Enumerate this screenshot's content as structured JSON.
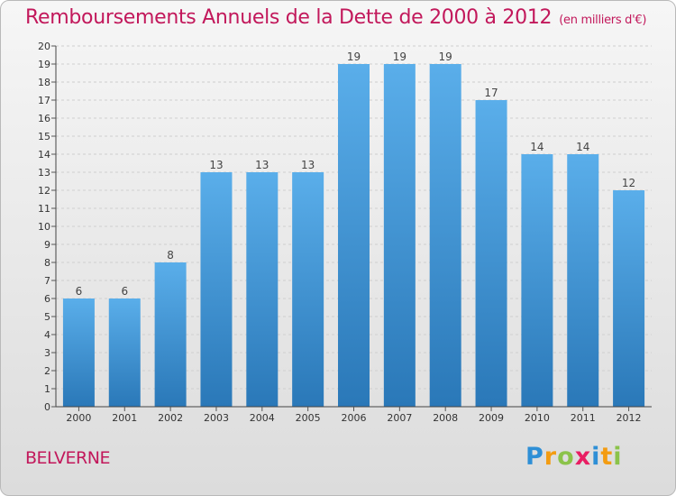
{
  "title": "Remboursements Annuels de la Dette de 2000 à 2012",
  "unit": "(en milliers d'€)",
  "place": "BELVERNE",
  "brand": {
    "text": "Proxiti",
    "letters": [
      {
        "ch": "P",
        "color": "#2e8fd6"
      },
      {
        "ch": "r",
        "color": "#f39c12"
      },
      {
        "ch": "o",
        "color": "#8bc34a"
      },
      {
        "ch": "x",
        "color": "#e91e63"
      },
      {
        "ch": "i",
        "color": "#2e8fd6"
      },
      {
        "ch": "t",
        "color": "#f39c12"
      },
      {
        "ch": "i",
        "color": "#8bc34a"
      }
    ]
  },
  "colors": {
    "bar_top": "#5aaeea",
    "bar_bottom": "#2a78b8",
    "accent": "#c2185b"
  },
  "chart_data": {
    "type": "bar",
    "categories": [
      "2000",
      "2001",
      "2002",
      "2003",
      "2004",
      "2005",
      "2006",
      "2007",
      "2008",
      "2009",
      "2010",
      "2011",
      "2012"
    ],
    "values": [
      6,
      6,
      8,
      13,
      13,
      13,
      19,
      19,
      19,
      17,
      14,
      14,
      12
    ],
    "title": "Remboursements Annuels de la Dette de 2000 à 2012",
    "xlabel": "",
    "ylabel": "",
    "ylim": [
      0,
      20
    ],
    "yticks": [
      "0",
      "1",
      "2",
      "3",
      "4",
      "5",
      "6",
      "7",
      "8",
      "9",
      "10",
      "11",
      "12",
      "13",
      "14",
      "15",
      "16",
      "17",
      "18",
      "19",
      "20"
    ],
    "grid": true,
    "legend": "none"
  }
}
